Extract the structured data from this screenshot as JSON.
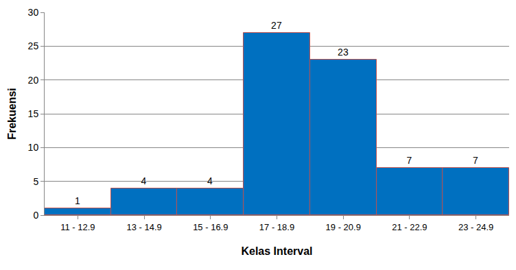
{
  "chart_data": {
    "type": "bar",
    "x_label": "Kelas Interval",
    "y_label": "Frekuensi",
    "categories": [
      "11 - 12.9",
      "13 - 14.9",
      "15 - 16.9",
      "17 - 18.9",
      "19 - 20.9",
      "21 - 22.9",
      "23 - 24.9"
    ],
    "values": [
      1,
      4,
      4,
      27,
      23,
      7,
      7
    ],
    "color": "#0070c0",
    "ylim": [
      0,
      30
    ],
    "yticks": [
      0,
      5,
      10,
      15,
      20,
      25,
      30
    ],
    "grid": true,
    "data_labels": true
  }
}
